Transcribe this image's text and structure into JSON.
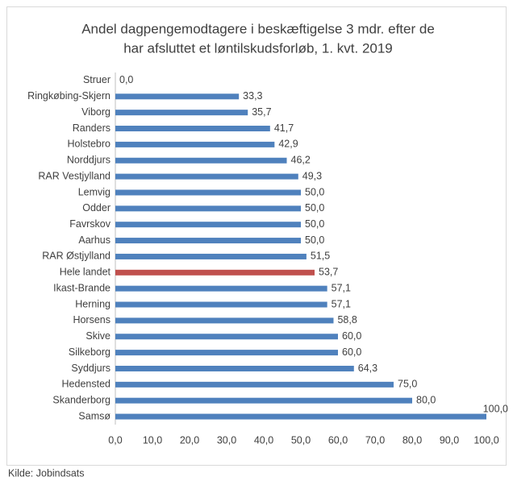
{
  "chart_data": {
    "type": "barh",
    "title": [
      "Andel dagpengemodtagere i beskæftigelse 3 mdr. efter de",
      "har afsluttet et løntilskudsforløb, 1. kvt. 2019"
    ],
    "categories": [
      "Struer",
      "Ringkøbing-Skjern",
      "Viborg",
      "Randers",
      "Holstebro",
      "Norddjurs",
      "RAR Vestjylland",
      "Lemvig",
      "Odder",
      "Favrskov",
      "Aarhus",
      "RAR Østjylland",
      "Hele landet",
      "Ikast-Brande",
      "Herning",
      "Horsens",
      "Skive",
      "Silkeborg",
      "Syddjurs",
      "Hedensted",
      "Skanderborg",
      "Samsø"
    ],
    "values": [
      0,
      33.3,
      35.7,
      41.7,
      42.9,
      46.2,
      49.3,
      50,
      50,
      50,
      50,
      51.5,
      53.7,
      57.1,
      57.1,
      58.8,
      60,
      60,
      64.3,
      75,
      80,
      100
    ],
    "value_labels": [
      "0,0",
      "33,3",
      "35,7",
      "41,7",
      "42,9",
      "46,2",
      "49,3",
      "50,0",
      "50,0",
      "50,0",
      "50,0",
      "51,5",
      "53,7",
      "57,1",
      "57,1",
      "58,8",
      "60,0",
      "60,0",
      "64,3",
      "75,0",
      "80,0",
      "100,0"
    ],
    "colors": [
      "#4f81bd",
      "#4f81bd",
      "#4f81bd",
      "#4f81bd",
      "#4f81bd",
      "#4f81bd",
      "#4f81bd",
      "#4f81bd",
      "#4f81bd",
      "#4f81bd",
      "#4f81bd",
      "#4f81bd",
      "#c0504d",
      "#4f81bd",
      "#4f81bd",
      "#4f81bd",
      "#4f81bd",
      "#4f81bd",
      "#4f81bd",
      "#4f81bd",
      "#4f81bd",
      "#4f81bd"
    ],
    "xlim": [
      0,
      100
    ],
    "xticks": [
      {
        "value": 0,
        "label": "0,0"
      },
      {
        "value": 10,
        "label": "10,0"
      },
      {
        "value": 20,
        "label": "20,0"
      },
      {
        "value": 30,
        "label": "30,0"
      },
      {
        "value": 40,
        "label": "40,0"
      },
      {
        "value": 50,
        "label": "50,0"
      },
      {
        "value": 60,
        "label": "60,0"
      },
      {
        "value": 70,
        "label": "70,0"
      },
      {
        "value": 80,
        "label": "80,0"
      },
      {
        "value": 90,
        "label": "90,0"
      },
      {
        "value": 100,
        "label": "100,0"
      }
    ],
    "grid": false,
    "source": "Kilde: Jobindsats"
  }
}
